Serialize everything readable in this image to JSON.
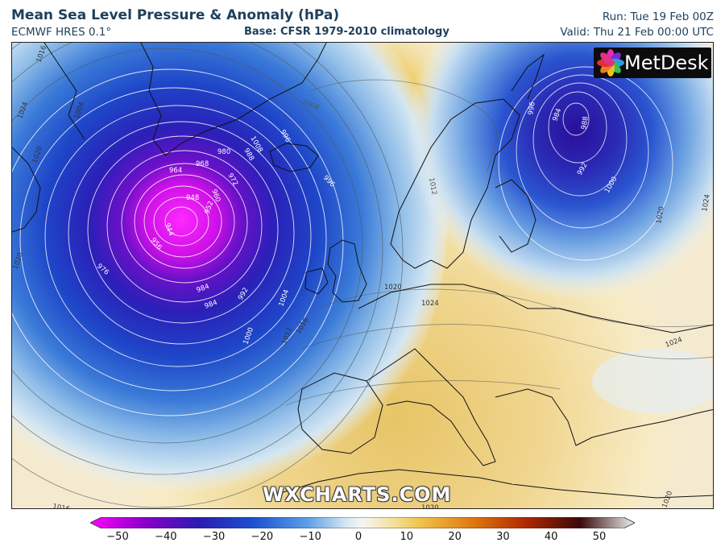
{
  "header": {
    "title": "Mean Sea Level Pressure & Anomaly (hPa)",
    "model": "ECMWF HRES 0.1°",
    "base": "Base: CFSR 1979-2010 climatology",
    "run": "Run: Tue 19 Feb 00Z",
    "valid": "Valid: Thu 21 Feb 00:00 UTC"
  },
  "logo": {
    "text": "MetDesk",
    "icon": "flower-icon"
  },
  "watermark": "WXCHARTS.COM",
  "map": {
    "isobar_labels": [
      {
        "t": "1016"
      },
      {
        "t": "1024"
      },
      {
        "t": "1004"
      },
      {
        "t": "1008"
      },
      {
        "t": "1012"
      },
      {
        "t": "980"
      },
      {
        "t": "984"
      },
      {
        "t": "988"
      },
      {
        "t": "964"
      },
      {
        "t": "968"
      },
      {
        "t": "972"
      },
      {
        "t": "960"
      },
      {
        "t": "948"
      },
      {
        "t": "952"
      },
      {
        "t": "944"
      },
      {
        "t": "956"
      },
      {
        "t": "976"
      },
      {
        "t": "984"
      },
      {
        "t": "992"
      },
      {
        "t": "1000"
      },
      {
        "t": "1004"
      },
      {
        "t": "1012"
      },
      {
        "t": "1016"
      },
      {
        "t": "1008"
      },
      {
        "t": "996"
      },
      {
        "t": "996"
      },
      {
        "t": "1020"
      },
      {
        "t": "1024"
      },
      {
        "t": "1020"
      },
      {
        "t": "984"
      },
      {
        "t": "988"
      },
      {
        "t": "996"
      },
      {
        "t": "992"
      },
      {
        "t": "1000"
      },
      {
        "t": "1020"
      },
      {
        "t": "1024"
      },
      {
        "t": "1024"
      },
      {
        "t": "1020"
      },
      {
        "t": "1020"
      },
      {
        "t": "1016"
      },
      {
        "t": "1020"
      }
    ]
  },
  "colorbar": {
    "ticks": [
      "−50",
      "−40",
      "−30",
      "−20",
      "−10",
      "0",
      "10",
      "20",
      "30",
      "40",
      "50"
    ],
    "colors": [
      "#ff00ff",
      "#8a00c8",
      "#2a1bb0",
      "#1c50d0",
      "#5ea0e6",
      "#f5f5f5",
      "#f0c850",
      "#e07a10",
      "#b02800",
      "#3a0a0a",
      "#f0f0f0"
    ]
  }
}
